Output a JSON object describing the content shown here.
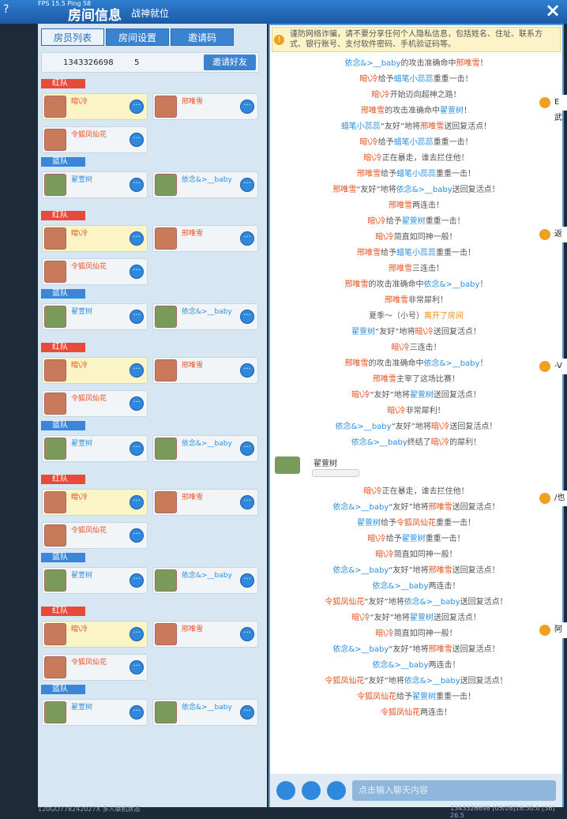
{
  "header": {
    "help": "?",
    "fps": "FPS 15.5  Ping 58",
    "title": "房间信息",
    "subtitle": "战神就位",
    "close": "×"
  },
  "tabs": [
    "房员列表",
    "房间设置",
    "邀请码"
  ],
  "room": {
    "id": "1343326698",
    "count": "5",
    "invite": "邀请好友"
  },
  "teams": [
    {
      "red_label": "红队",
      "red": [
        "暗\\冷",
        "邢唯雪",
        "令狐凤仙花"
      ],
      "blue_label": "蓝队",
      "blue": [
        "翟萱树",
        "依念&>__baby"
      ]
    },
    {
      "red_label": "红队",
      "red": [
        "暗\\冷",
        "邢唯雪",
        "令狐凤仙花"
      ],
      "blue_label": "蓝队",
      "blue": [
        "翟萱树",
        "依念&>__baby"
      ]
    },
    {
      "red_label": "红队",
      "red": [
        "暗\\冷",
        "邢唯雪",
        "令狐凤仙花"
      ],
      "blue_label": "蓝队",
      "blue": [
        "翟萱树",
        "依念&>__baby"
      ]
    },
    {
      "red_label": "红队",
      "red": [
        "暗\\冷",
        "邢唯雪",
        "令狐凤仙花"
      ],
      "blue_label": "蓝队",
      "blue": [
        "翟萱树",
        "依念&>__baby"
      ]
    },
    {
      "red_label": "红队",
      "red": [
        "暗\\冷",
        "邢唯雪",
        "令狐凤仙花"
      ],
      "blue_label": "蓝队",
      "blue": [
        "翟萱树",
        "依念&>__baby"
      ]
    }
  ],
  "warning": "谨防网络诈骗，请不要分享任何个人隐私信息，包括姓名、住址、联系方式、银行账号、支付软件密码、手机验证码等。",
  "chat_before": [
    [
      {
        "text": "依念&>__baby",
        "color": "#2a8ee0"
      },
      {
        "text": "的攻击准确命中"
      },
      {
        "text": "邢唯雪",
        "color": "#e8501e"
      },
      {
        "text": "！"
      }
    ],
    [
      {
        "text": "暗\\冷",
        "color": "#e8501e"
      },
      {
        "text": "给予"
      },
      {
        "text": "蜡笔小蕊蕊",
        "color": "#2a8ee0"
      },
      {
        "text": "重重一击！"
      }
    ],
    [
      {
        "text": "暗\\冷",
        "color": "#e8501e"
      },
      {
        "text": "开始迈向超神之路！"
      }
    ],
    [
      {
        "text": "邢唯雪",
        "color": "#e8501e"
      },
      {
        "text": "的攻击准确命中"
      },
      {
        "text": "翟萱树",
        "color": "#2a8ee0"
      },
      {
        "text": "！"
      }
    ],
    [
      {
        "text": "蜡笔小蕊蕊",
        "color": "#2a8ee0"
      },
      {
        "text": "“友好”地将"
      },
      {
        "text": "邢唯雪",
        "color": "#e8501e"
      },
      {
        "text": "送回复活点！"
      }
    ],
    [
      {
        "text": "暗\\冷",
        "color": "#e8501e"
      },
      {
        "text": "给予"
      },
      {
        "text": "蜡笔小蕊蕊",
        "color": "#2a8ee0"
      },
      {
        "text": "重重一击！"
      }
    ],
    [
      {
        "text": "暗\\冷",
        "color": "#e8501e"
      },
      {
        "text": "正在暴走，谁去拦住他！"
      }
    ],
    [
      {
        "text": "邢唯雪",
        "color": "#e8501e"
      },
      {
        "text": "给予"
      },
      {
        "text": "蜡笔小蕊蕊",
        "color": "#2a8ee0"
      },
      {
        "text": "重重一击！"
      }
    ],
    [
      {
        "text": "邢唯雪",
        "color": "#e8501e"
      },
      {
        "text": "“友好”地将"
      },
      {
        "text": "依念&>__baby",
        "color": "#2a8ee0"
      },
      {
        "text": "送回复活点！"
      }
    ],
    [
      {
        "text": "邢唯雪",
        "color": "#e8501e"
      },
      {
        "text": "两连击！"
      }
    ],
    [
      {
        "text": "暗\\冷",
        "color": "#e8501e"
      },
      {
        "text": "给予"
      },
      {
        "text": "翟萱树",
        "color": "#2a8ee0"
      },
      {
        "text": "重重一击！"
      }
    ],
    [
      {
        "text": "暗\\冷",
        "color": "#e8501e"
      },
      {
        "text": "简直如同神一般！"
      }
    ],
    [
      {
        "text": "邢唯雪",
        "color": "#e8501e"
      },
      {
        "text": "给予"
      },
      {
        "text": "蜡笔小蕊蕊",
        "color": "#2a8ee0"
      },
      {
        "text": "重重一击！"
      }
    ],
    [
      {
        "text": "邢唯雪",
        "color": "#e8501e"
      },
      {
        "text": "三连击！"
      }
    ],
    [
      {
        "text": "邢唯雪",
        "color": "#e8501e"
      },
      {
        "text": "的攻击准确命中"
      },
      {
        "text": "依念&>__baby",
        "color": "#2a8ee0"
      },
      {
        "text": "！"
      }
    ],
    [
      {
        "text": "邢唯雪",
        "color": "#e8501e"
      },
      {
        "text": "非常犀利！"
      }
    ],
    [
      {
        "text": "夏季～（小号）"
      },
      {
        "text": "离开了房间",
        "color": "#f08a14"
      }
    ],
    [
      {
        "text": "翟萱树",
        "color": "#2a8ee0"
      },
      {
        "text": "“友好”地将"
      },
      {
        "text": "暗\\冷",
        "color": "#e8501e"
      },
      {
        "text": "送回复活点！"
      }
    ],
    [
      {
        "text": "暗\\冷",
        "color": "#e8501e"
      },
      {
        "text": "三连击！"
      }
    ],
    [
      {
        "text": "邢唯雪",
        "color": "#e8501e"
      },
      {
        "text": "的攻击准确命中"
      },
      {
        "text": "依念&>__baby",
        "color": "#2a8ee0"
      },
      {
        "text": "！"
      }
    ],
    [
      {
        "text": "邢唯雪",
        "color": "#e8501e"
      },
      {
        "text": "主宰了这场比赛！"
      }
    ],
    [
      {
        "text": "暗\\冷",
        "color": "#e8501e"
      },
      {
        "text": "“友好”地将"
      },
      {
        "text": "翟萱树",
        "color": "#2a8ee0"
      },
      {
        "text": "送回复活点！"
      }
    ],
    [
      {
        "text": "暗\\冷",
        "color": "#e8501e"
      },
      {
        "text": "非常犀利！"
      }
    ],
    [
      {
        "text": "依念&>__baby",
        "color": "#2a8ee0"
      },
      {
        "text": "“友好”地将"
      },
      {
        "text": "暗\\冷",
        "color": "#e8501e"
      },
      {
        "text": "送回复活点！"
      }
    ],
    [
      {
        "text": "依念&>__baby",
        "color": "#2a8ee0"
      },
      {
        "text": "终结了"
      },
      {
        "text": "暗\\冷",
        "color": "#e8501e"
      },
      {
        "text": "的犀利！"
      }
    ]
  ],
  "player_chat": {
    "name": "翟萱树"
  },
  "chat_after": [
    [
      {
        "text": "暗\\冷",
        "color": "#e8501e"
      },
      {
        "text": "正在暴走，谁去拦住他！"
      }
    ],
    [
      {
        "text": "依念&>__baby",
        "color": "#2a8ee0"
      },
      {
        "text": "“友好”地将"
      },
      {
        "text": "邢唯雪",
        "color": "#e8501e"
      },
      {
        "text": "送回复活点！"
      }
    ],
    [
      {
        "text": "翟萱树",
        "color": "#2a8ee0"
      },
      {
        "text": "给予"
      },
      {
        "text": "令狐凤仙花",
        "color": "#e8501e"
      },
      {
        "text": "重重一击！"
      }
    ],
    [
      {
        "text": "暗\\冷",
        "color": "#e8501e"
      },
      {
        "text": "给予"
      },
      {
        "text": "翟萱树",
        "color": "#2a8ee0"
      },
      {
        "text": "重重一击！"
      }
    ],
    [
      {
        "text": "暗\\冷",
        "color": "#e8501e"
      },
      {
        "text": "简直如同神一般！"
      }
    ],
    [
      {
        "text": "依念&>__baby",
        "color": "#2a8ee0"
      },
      {
        "text": "“友好”地将"
      },
      {
        "text": "邢唯雪",
        "color": "#e8501e"
      },
      {
        "text": "送回复活点！"
      }
    ],
    [
      {
        "text": "依念&>__baby",
        "color": "#2a8ee0"
      },
      {
        "text": "两连击！"
      }
    ],
    [
      {
        "text": "令狐凤仙花",
        "color": "#e8501e"
      },
      {
        "text": "“友好”地将"
      },
      {
        "text": "依念&>__baby",
        "color": "#2a8ee0"
      },
      {
        "text": "送回复活点！"
      }
    ],
    [
      {
        "text": "暗\\冷",
        "color": "#e8501e"
      },
      {
        "text": "“友好”地将"
      },
      {
        "text": "翟萱树",
        "color": "#2a8ee0"
      },
      {
        "text": "送回复活点！"
      }
    ],
    [
      {
        "text": "暗\\冷",
        "color": "#e8501e"
      },
      {
        "text": "简直如同神一般！"
      }
    ],
    [
      {
        "text": "依念&>__baby",
        "color": "#2a8ee0"
      },
      {
        "text": "“友好”地将"
      },
      {
        "text": "邢唯雪",
        "color": "#e8501e"
      },
      {
        "text": "送回复活点！"
      }
    ],
    [
      {
        "text": "依念&>__baby",
        "color": "#2a8ee0"
      },
      {
        "text": "两连击！"
      }
    ],
    [
      {
        "text": "令狐凤仙花",
        "color": "#e8501e"
      },
      {
        "text": "“友好”地将"
      },
      {
        "text": "依念&>__baby",
        "color": "#2a8ee0"
      },
      {
        "text": "送回复活点！"
      }
    ],
    [
      {
        "text": "令狐凤仙花",
        "color": "#e8501e"
      },
      {
        "text": "给予"
      },
      {
        "text": "翟萱树",
        "color": "#2a8ee0"
      },
      {
        "text": "重重一击！"
      }
    ],
    [
      {
        "text": "令狐凤仙花",
        "color": "#e8501e"
      },
      {
        "text": "两连击！"
      }
    ]
  ],
  "input_placeholder": "点击输入聊天内容",
  "side_tags": [
    "E武",
    "返",
    "-V",
    "/也",
    "阿"
  ],
  "footer": {
    "left": "120GO778242027X 多人联机状态",
    "right": "1343326698  [05/28]16:30:0  [36] 26.5"
  }
}
